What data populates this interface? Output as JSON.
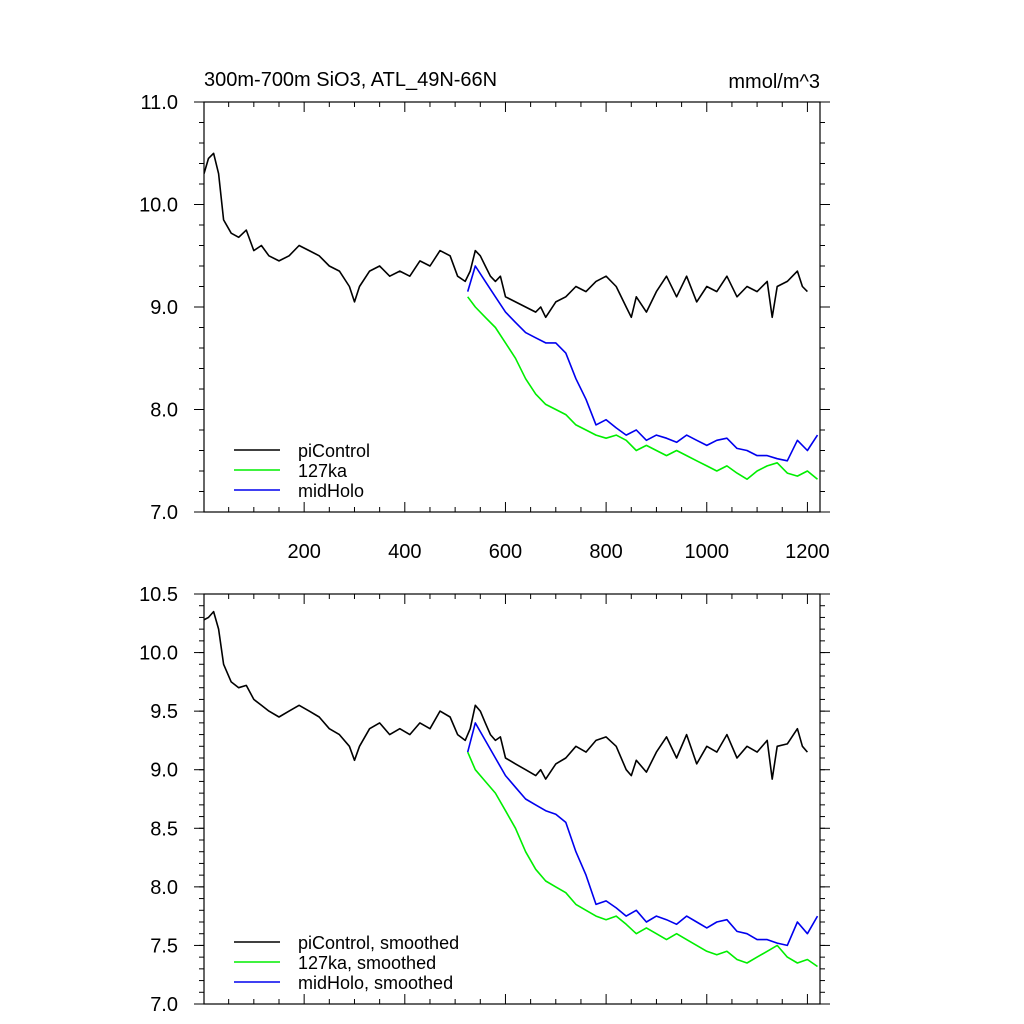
{
  "chart_data": [
    {
      "type": "line",
      "title": "300m-700m SiO3, ATL_49N-66N",
      "units": "mmol/m^3",
      "xlim": [
        1,
        1225
      ],
      "ylim": [
        7.0,
        11.0
      ],
      "xticks": [
        200,
        400,
        600,
        800,
        1000,
        1200
      ],
      "xtick_labels": [
        "200",
        "400",
        "600",
        "800",
        "1000",
        "1200"
      ],
      "yticks": [
        7.0,
        8.0,
        9.0,
        10.0,
        11.0
      ],
      "ytick_labels": [
        "7.0",
        "8.0",
        "9.0",
        "10.0",
        "11.0"
      ],
      "legend_position": "bottom-left",
      "series": [
        {
          "name": "piControl",
          "color": "#000000",
          "x": [
            1,
            10,
            20,
            30,
            40,
            55,
            70,
            85,
            100,
            115,
            130,
            150,
            170,
            190,
            210,
            230,
            250,
            270,
            290,
            300,
            310,
            330,
            350,
            370,
            390,
            410,
            430,
            450,
            470,
            490,
            505,
            520,
            530,
            540,
            550,
            560,
            570,
            580,
            590,
            600,
            620,
            640,
            660,
            670,
            680,
            700,
            720,
            740,
            760,
            780,
            800,
            820,
            840,
            850,
            860,
            880,
            900,
            920,
            940,
            960,
            980,
            1000,
            1020,
            1040,
            1060,
            1080,
            1100,
            1120,
            1130,
            1140,
            1160,
            1180,
            1190,
            1200
          ],
          "values": [
            10.3,
            10.45,
            10.5,
            10.3,
            9.85,
            9.72,
            9.68,
            9.75,
            9.55,
            9.6,
            9.5,
            9.45,
            9.5,
            9.6,
            9.55,
            9.5,
            9.4,
            9.35,
            9.2,
            9.05,
            9.2,
            9.35,
            9.4,
            9.3,
            9.35,
            9.3,
            9.45,
            9.4,
            9.55,
            9.5,
            9.3,
            9.25,
            9.35,
            9.55,
            9.5,
            9.4,
            9.3,
            9.25,
            9.3,
            9.1,
            9.05,
            9.0,
            8.95,
            9.0,
            8.9,
            9.05,
            9.1,
            9.2,
            9.15,
            9.25,
            9.3,
            9.2,
            9.0,
            8.9,
            9.1,
            8.95,
            9.15,
            9.3,
            9.1,
            9.3,
            9.05,
            9.2,
            9.15,
            9.3,
            9.1,
            9.2,
            9.15,
            9.25,
            8.9,
            9.2,
            9.25,
            9.35,
            9.2,
            9.15
          ]
        },
        {
          "name": "127ka",
          "color": "#00ee00",
          "x": [
            525,
            540,
            560,
            580,
            600,
            620,
            640,
            660,
            680,
            700,
            720,
            740,
            760,
            780,
            800,
            820,
            840,
            860,
            880,
            900,
            920,
            940,
            960,
            980,
            1000,
            1020,
            1040,
            1060,
            1080,
            1100,
            1120,
            1140,
            1160,
            1180,
            1200,
            1220
          ],
          "values": [
            9.1,
            9.0,
            8.9,
            8.8,
            8.65,
            8.5,
            8.3,
            8.15,
            8.05,
            8.0,
            7.95,
            7.85,
            7.8,
            7.75,
            7.72,
            7.75,
            7.7,
            7.6,
            7.65,
            7.6,
            7.55,
            7.6,
            7.55,
            7.5,
            7.45,
            7.4,
            7.45,
            7.38,
            7.32,
            7.4,
            7.45,
            7.48,
            7.38,
            7.35,
            7.4,
            7.32
          ]
        },
        {
          "name": "midHolo",
          "color": "#0000ee",
          "x": [
            525,
            540,
            560,
            580,
            600,
            620,
            640,
            660,
            680,
            700,
            720,
            740,
            760,
            780,
            800,
            820,
            840,
            860,
            880,
            900,
            920,
            940,
            960,
            980,
            1000,
            1020,
            1040,
            1060,
            1080,
            1100,
            1120,
            1140,
            1160,
            1180,
            1200,
            1220
          ],
          "values": [
            9.15,
            9.4,
            9.25,
            9.1,
            8.95,
            8.85,
            8.75,
            8.7,
            8.65,
            8.65,
            8.55,
            8.3,
            8.1,
            7.85,
            7.9,
            7.82,
            7.75,
            7.8,
            7.7,
            7.75,
            7.72,
            7.68,
            7.75,
            7.7,
            7.65,
            7.7,
            7.72,
            7.62,
            7.6,
            7.55,
            7.55,
            7.52,
            7.5,
            7.7,
            7.6,
            7.75
          ]
        }
      ]
    },
    {
      "type": "line",
      "title": "",
      "xlim": [
        1,
        1225
      ],
      "ylim": [
        7.0,
        10.5
      ],
      "xticks": [
        200,
        400,
        600,
        800,
        1000,
        1200
      ],
      "xtick_labels": [],
      "yticks": [
        7.0,
        7.5,
        8.0,
        8.5,
        9.0,
        9.5,
        10.0,
        10.5
      ],
      "ytick_labels": [
        "7.0",
        "7.5",
        "8.0",
        "8.5",
        "9.0",
        "9.5",
        "10.0",
        "10.5"
      ],
      "legend_position": "bottom-left",
      "series": [
        {
          "name": "piControl, smoothed",
          "color": "#000000",
          "x": [
            1,
            10,
            20,
            30,
            40,
            55,
            70,
            85,
            100,
            115,
            130,
            150,
            170,
            190,
            210,
            230,
            250,
            270,
            290,
            300,
            310,
            330,
            350,
            370,
            390,
            410,
            430,
            450,
            470,
            490,
            505,
            520,
            530,
            540,
            550,
            560,
            570,
            580,
            590,
            600,
            620,
            640,
            660,
            670,
            680,
            700,
            720,
            740,
            760,
            780,
            800,
            820,
            840,
            850,
            860,
            880,
            900,
            920,
            940,
            960,
            980,
            1000,
            1020,
            1040,
            1060,
            1080,
            1100,
            1120,
            1130,
            1140,
            1160,
            1180,
            1190,
            1200
          ],
          "values": [
            10.28,
            10.3,
            10.35,
            10.2,
            9.9,
            9.75,
            9.7,
            9.72,
            9.6,
            9.55,
            9.5,
            9.45,
            9.5,
            9.55,
            9.5,
            9.45,
            9.35,
            9.3,
            9.2,
            9.08,
            9.2,
            9.35,
            9.4,
            9.3,
            9.35,
            9.3,
            9.4,
            9.35,
            9.5,
            9.45,
            9.3,
            9.25,
            9.35,
            9.55,
            9.5,
            9.4,
            9.3,
            9.25,
            9.28,
            9.1,
            9.05,
            9.0,
            8.95,
            9.0,
            8.92,
            9.05,
            9.1,
            9.2,
            9.15,
            9.25,
            9.28,
            9.2,
            9.0,
            8.95,
            9.08,
            8.98,
            9.15,
            9.28,
            9.1,
            9.3,
            9.05,
            9.2,
            9.15,
            9.3,
            9.1,
            9.2,
            9.15,
            9.25,
            8.92,
            9.2,
            9.22,
            9.35,
            9.2,
            9.15
          ]
        },
        {
          "name": "127ka, smoothed",
          "color": "#00ee00",
          "x": [
            525,
            540,
            560,
            580,
            600,
            620,
            640,
            660,
            680,
            700,
            720,
            740,
            760,
            780,
            800,
            820,
            840,
            860,
            880,
            900,
            920,
            940,
            960,
            980,
            1000,
            1020,
            1040,
            1060,
            1080,
            1100,
            1120,
            1140,
            1160,
            1180,
            1200,
            1220
          ],
          "values": [
            9.15,
            9.0,
            8.9,
            8.8,
            8.65,
            8.5,
            8.3,
            8.15,
            8.05,
            8.0,
            7.95,
            7.85,
            7.8,
            7.75,
            7.72,
            7.75,
            7.68,
            7.6,
            7.65,
            7.6,
            7.55,
            7.6,
            7.55,
            7.5,
            7.45,
            7.42,
            7.45,
            7.38,
            7.35,
            7.4,
            7.45,
            7.5,
            7.4,
            7.35,
            7.38,
            7.32
          ]
        },
        {
          "name": "midHolo, smoothed",
          "color": "#0000ee",
          "x": [
            525,
            540,
            560,
            580,
            600,
            620,
            640,
            660,
            680,
            700,
            720,
            740,
            760,
            780,
            800,
            820,
            840,
            860,
            880,
            900,
            920,
            940,
            960,
            980,
            1000,
            1020,
            1040,
            1060,
            1080,
            1100,
            1120,
            1140,
            1160,
            1180,
            1200,
            1220
          ],
          "values": [
            9.15,
            9.4,
            9.25,
            9.1,
            8.95,
            8.85,
            8.75,
            8.7,
            8.65,
            8.62,
            8.55,
            8.3,
            8.1,
            7.85,
            7.88,
            7.82,
            7.75,
            7.8,
            7.7,
            7.75,
            7.72,
            7.68,
            7.75,
            7.7,
            7.65,
            7.7,
            7.72,
            7.62,
            7.6,
            7.55,
            7.55,
            7.52,
            7.5,
            7.7,
            7.6,
            7.75
          ]
        }
      ]
    }
  ]
}
